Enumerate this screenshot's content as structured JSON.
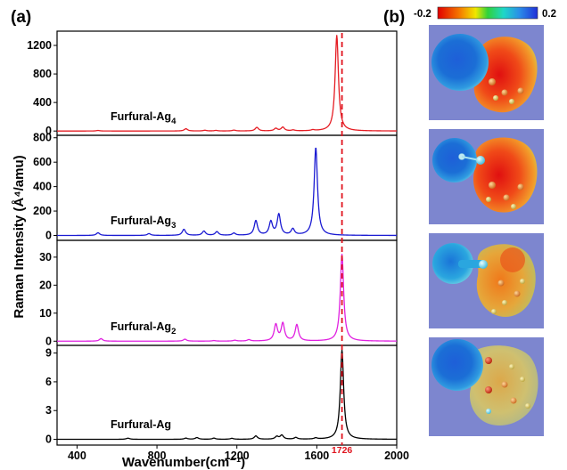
{
  "panel_a_label": "(a)",
  "panel_b_label": "(b)",
  "reference_line_label": "1726",
  "colorbar": {
    "min_label": "-0.2",
    "max_label": "0.2"
  },
  "colors": {
    "ag4": "#e51c23",
    "ag3": "#1a1ad2",
    "ag2": "#e020e0",
    "ag1": "#000000",
    "reference": "#e0141e",
    "map_background": "#7d86cf"
  },
  "esp_maps": [
    {
      "name": "Furfural-Ag4 electrostatic potential map"
    },
    {
      "name": "Furfural-Ag3 electrostatic potential map"
    },
    {
      "name": "Furfural-Ag2 electrostatic potential map"
    },
    {
      "name": "Furfural-Ag electrostatic potential map"
    }
  ],
  "chart_data": {
    "type": "line",
    "xlabel": "Wavenumber(cm⁻¹)",
    "ylabel": "Raman Intensity (Å⁴/amu)",
    "xlim": [
      300,
      2000
    ],
    "xticks": [
      400,
      800,
      1200,
      1600,
      2000
    ],
    "reference_line": 1726,
    "panels": [
      {
        "series": "Furfural-Ag4",
        "label_main": "Furfural-Ag",
        "label_sub": "4",
        "ylim": [
          -60,
          1400
        ],
        "yticks": [
          0,
          400,
          800,
          1200
        ],
        "peaks": [
          [
            505,
            8
          ],
          [
            945,
            32
          ],
          [
            1040,
            10
          ],
          [
            1095,
            8
          ],
          [
            1185,
            12
          ],
          [
            1300,
            50
          ],
          [
            1395,
            35
          ],
          [
            1430,
            52
          ],
          [
            1482,
            12
          ],
          [
            1580,
            12
          ],
          [
            1700,
            1340
          ]
        ]
      },
      {
        "series": "Furfural-Ag3",
        "label_main": "Furfural-Ag",
        "label_sub": "3",
        "ylim": [
          -40,
          820
        ],
        "yticks": [
          0,
          200,
          400,
          600,
          800
        ],
        "peaks": [
          [
            505,
            22
          ],
          [
            760,
            15
          ],
          [
            935,
            50
          ],
          [
            1035,
            35
          ],
          [
            1100,
            30
          ],
          [
            1185,
            18
          ],
          [
            1295,
            120
          ],
          [
            1370,
            110
          ],
          [
            1410,
            170
          ],
          [
            1480,
            50
          ],
          [
            1595,
            720
          ]
        ]
      },
      {
        "series": "Furfural-Ag2",
        "label_main": "Furfural-Ag",
        "label_sub": "2",
        "ylim": [
          -1.5,
          36
        ],
        "yticks": [
          0,
          10,
          20,
          30
        ],
        "peaks": [
          [
            520,
            0.9
          ],
          [
            940,
            0.7
          ],
          [
            1085,
            0.2
          ],
          [
            1190,
            0.3
          ],
          [
            1260,
            0.5
          ],
          [
            1395,
            5.8
          ],
          [
            1430,
            6.2
          ],
          [
            1500,
            5.8
          ],
          [
            1726,
            31
          ]
        ]
      },
      {
        "series": "Furfural-Ag",
        "label_main": "Furfural-Ag",
        "label_sub": "",
        "ylim": [
          -0.6,
          9.8
        ],
        "yticks": [
          0,
          3,
          6,
          9
        ],
        "peaks": [
          [
            655,
            0.12
          ],
          [
            945,
            0.12
          ],
          [
            1000,
            0.18
          ],
          [
            1085,
            0.12
          ],
          [
            1175,
            0.1
          ],
          [
            1295,
            0.35
          ],
          [
            1400,
            0.28
          ],
          [
            1425,
            0.42
          ],
          [
            1495,
            0.18
          ],
          [
            1595,
            0.12
          ],
          [
            1726,
            9.3
          ]
        ]
      }
    ]
  }
}
